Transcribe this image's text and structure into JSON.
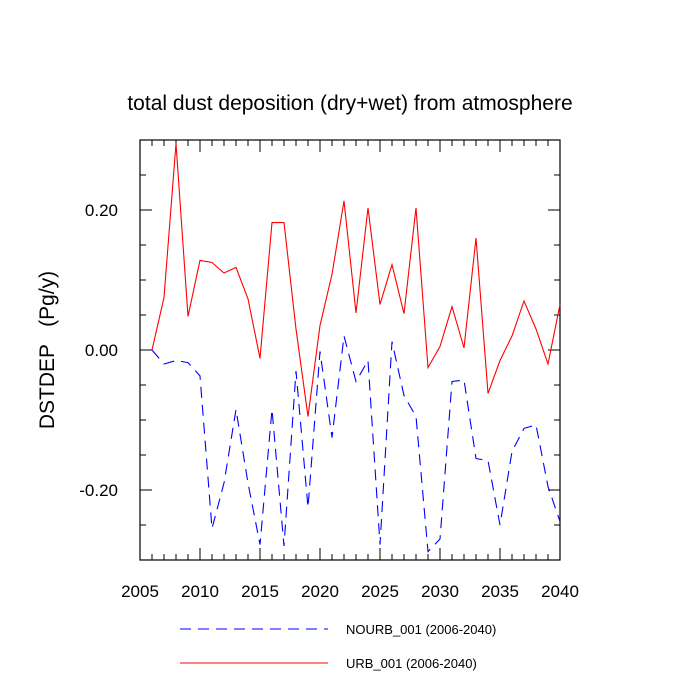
{
  "chart_data": {
    "type": "line",
    "title": "total dust deposition (dry+wet) from atmosphere",
    "ylabel": "DSTDEP   (Pg/y)",
    "xlabel": "",
    "xlim": [
      2005,
      2040
    ],
    "ylim": [
      -0.3,
      0.3
    ],
    "x_ticks": [
      2005,
      2010,
      2015,
      2020,
      2025,
      2030,
      2035,
      2040
    ],
    "x_tick_labels": [
      "2005",
      "2010",
      "2015",
      "2020",
      "2025",
      "2030",
      "2035",
      "2040"
    ],
    "y_ticks": [
      -0.2,
      0.0,
      0.2
    ],
    "y_tick_labels": [
      "-0.20",
      "0.00",
      "0.20"
    ],
    "legend_position": "bottom",
    "x": [
      2006,
      2007,
      2008,
      2009,
      2010,
      2011,
      2012,
      2013,
      2014,
      2015,
      2016,
      2017,
      2018,
      2019,
      2020,
      2021,
      2022,
      2023,
      2024,
      2025,
      2026,
      2027,
      2028,
      2029,
      2030,
      2031,
      2032,
      2033,
      2034,
      2035,
      2036,
      2037,
      2038,
      2039,
      2040
    ],
    "series": [
      {
        "name": "NOURB_001 (2006-2040)",
        "color": "#0000ff",
        "style": "dashed",
        "values": [
          0.0,
          -0.02,
          -0.015,
          -0.018,
          -0.037,
          -0.255,
          -0.19,
          -0.085,
          -0.19,
          -0.278,
          -0.085,
          -0.28,
          -0.03,
          -0.225,
          -0.002,
          -0.125,
          0.02,
          -0.045,
          -0.015,
          -0.278,
          0.012,
          -0.065,
          -0.095,
          -0.288,
          -0.27,
          -0.045,
          -0.043,
          -0.155,
          -0.158,
          -0.25,
          -0.145,
          -0.112,
          -0.107,
          -0.195,
          -0.245
        ]
      },
      {
        "name": "URB_001 (2006-2040)",
        "color": "#ff0000",
        "style": "solid",
        "values": [
          0.0,
          0.075,
          0.295,
          0.048,
          0.128,
          0.125,
          0.11,
          0.118,
          0.073,
          -0.012,
          0.182,
          0.182,
          0.03,
          -0.095,
          0.035,
          0.108,
          0.213,
          0.053,
          0.203,
          0.065,
          0.122,
          0.052,
          0.203,
          -0.025,
          0.005,
          0.062,
          0.003,
          0.16,
          -0.062,
          -0.015,
          0.02,
          0.07,
          0.03,
          -0.02,
          0.065
        ]
      }
    ]
  }
}
